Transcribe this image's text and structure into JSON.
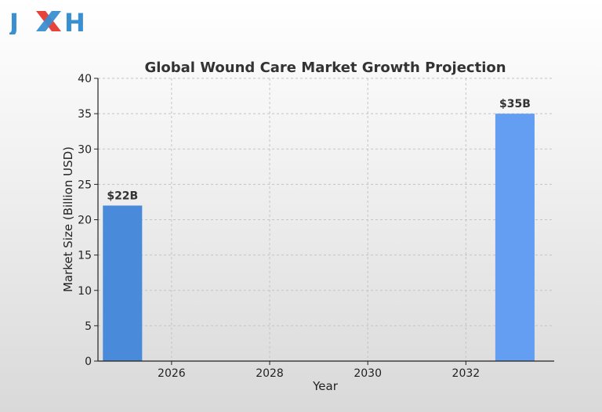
{
  "logo": {
    "text": "JXH",
    "colors": {
      "letters": "#3a8fd0",
      "x_red": "#e8433a",
      "x_blue": "#3a8fd0"
    }
  },
  "chart_data": {
    "type": "bar",
    "title": "Global Wound Care Market Growth Projection",
    "xlabel": "Year",
    "ylabel": "Market Size (Billion USD)",
    "x": [
      2025,
      2033
    ],
    "values": [
      22,
      35
    ],
    "data_labels": [
      "$22B",
      "$35B"
    ],
    "bar_colors": [
      "#4a8ada",
      "#649ef2"
    ],
    "xlim": [
      2024.5,
      2033.8
    ],
    "ylim": [
      0,
      40
    ],
    "xticks": [
      2026,
      2028,
      2030,
      2032
    ],
    "yticks": [
      0,
      5,
      10,
      15,
      20,
      25,
      30,
      35,
      40
    ],
    "bar_width_years": 0.8,
    "grid": true
  }
}
